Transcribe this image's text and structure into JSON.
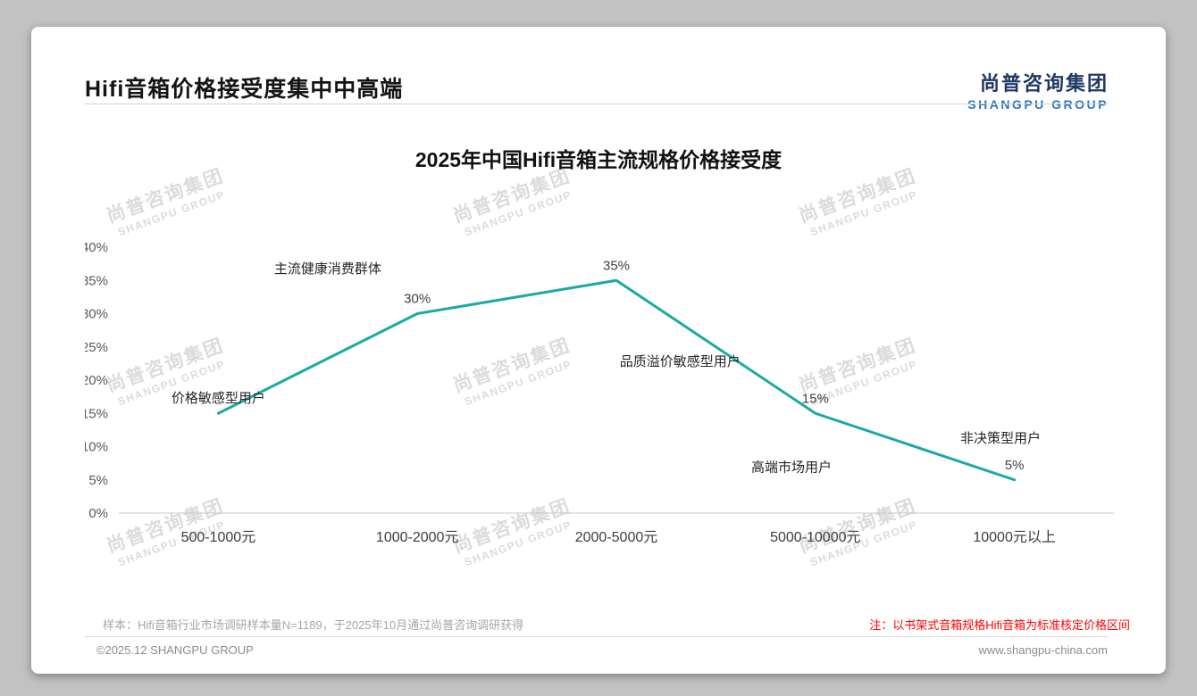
{
  "header": {
    "title": "Hifi音箱价格接受度集中中高端",
    "logo_cn": "尚普咨询集团",
    "logo_en": "SHANGPU GROUP"
  },
  "watermark": {
    "line1": "尚普咨询集团",
    "line2": "SHANGPU GROUP"
  },
  "chart_data": {
    "type": "line",
    "title": "2025年中国Hifi音箱主流规格价格接受度",
    "categories": [
      "500-1000元",
      "1000-2000元",
      "2000-5000元",
      "5000-10000元",
      "10000元以上"
    ],
    "values": [
      15,
      30,
      35,
      15,
      5
    ],
    "data_labels": [
      "",
      "30%",
      "35%",
      "15%",
      "5%"
    ],
    "xlabel": "",
    "ylabel": "",
    "ylim": [
      0,
      40
    ],
    "y_tick_step": 5,
    "y_tick_labels": [
      "0%",
      "5%",
      "10%",
      "15%",
      "20%",
      "25%",
      "30%",
      "35%",
      "40%"
    ],
    "grid": false,
    "legend": "none",
    "line_color": "#1BA9A4",
    "annotations": [
      {
        "text": "价格敏感型用户",
        "cx": 0.0,
        "cy": 17.3
      },
      {
        "text": "主流健康消费群体",
        "cx": 0.55,
        "cy": 36.8
      },
      {
        "text": "品质溢价敏感型用户",
        "cx": 2.32,
        "cy": 22.8
      },
      {
        "text": "高端市场用户",
        "cx": 2.88,
        "cy": 6.9
      },
      {
        "text": "非决策型用户",
        "cx": 3.93,
        "cy": 11.3
      }
    ]
  },
  "footer": {
    "sample_note": "样本：Hifi音箱行业市场调研样本量N=1189，于2025年10月通过尚普咨询调研获得",
    "red_note": "注：以书架式音箱规格Hifi音箱为标准核定价格区间",
    "copyright": "©2025.12 SHANGPU GROUP",
    "website": "www.shangpu-china.com"
  },
  "colors": {
    "line_teal": "#1BA9A4",
    "note_red": "#FF0000",
    "logo_cn_navy": "#1F3864",
    "logo_en_blue": "#2E75B6"
  }
}
